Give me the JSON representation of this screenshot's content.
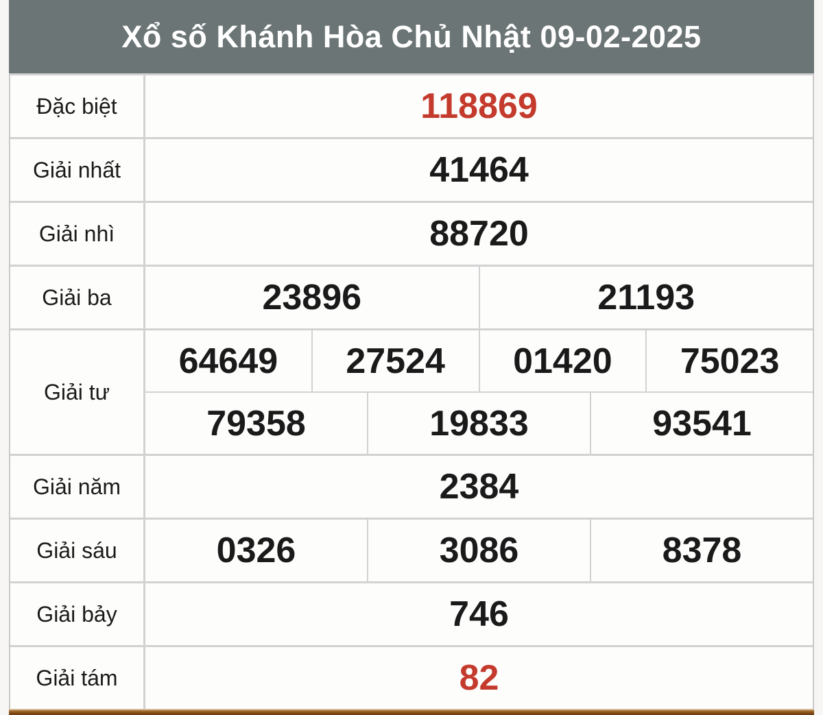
{
  "title": "Xổ số Khánh Hòa Chủ Nhật 09-02-2025",
  "colors": {
    "accent_red": "#c43b2d",
    "header_bg": "#6c7576",
    "bottom_bar_brown": "#7c4714"
  },
  "prizes": {
    "special": {
      "label": "Đặc biệt",
      "value": "118869"
    },
    "first": {
      "label": "Giải nhất",
      "value": "41464"
    },
    "second": {
      "label": "Giải nhì",
      "value": "88720"
    },
    "third": {
      "label": "Giải ba",
      "values": [
        "23896",
        "21193"
      ]
    },
    "fourth": {
      "label": "Giải tư",
      "row1": [
        "64649",
        "27524",
        "01420",
        "75023"
      ],
      "row2": [
        "79358",
        "19833",
        "93541"
      ]
    },
    "fifth": {
      "label": "Giải năm",
      "value": "2384"
    },
    "sixth": {
      "label": "Giải sáu",
      "values": [
        "0326",
        "3086",
        "8378"
      ]
    },
    "seventh": {
      "label": "Giải bảy",
      "value": "746"
    },
    "eighth": {
      "label": "Giải tám",
      "value": "82"
    }
  }
}
